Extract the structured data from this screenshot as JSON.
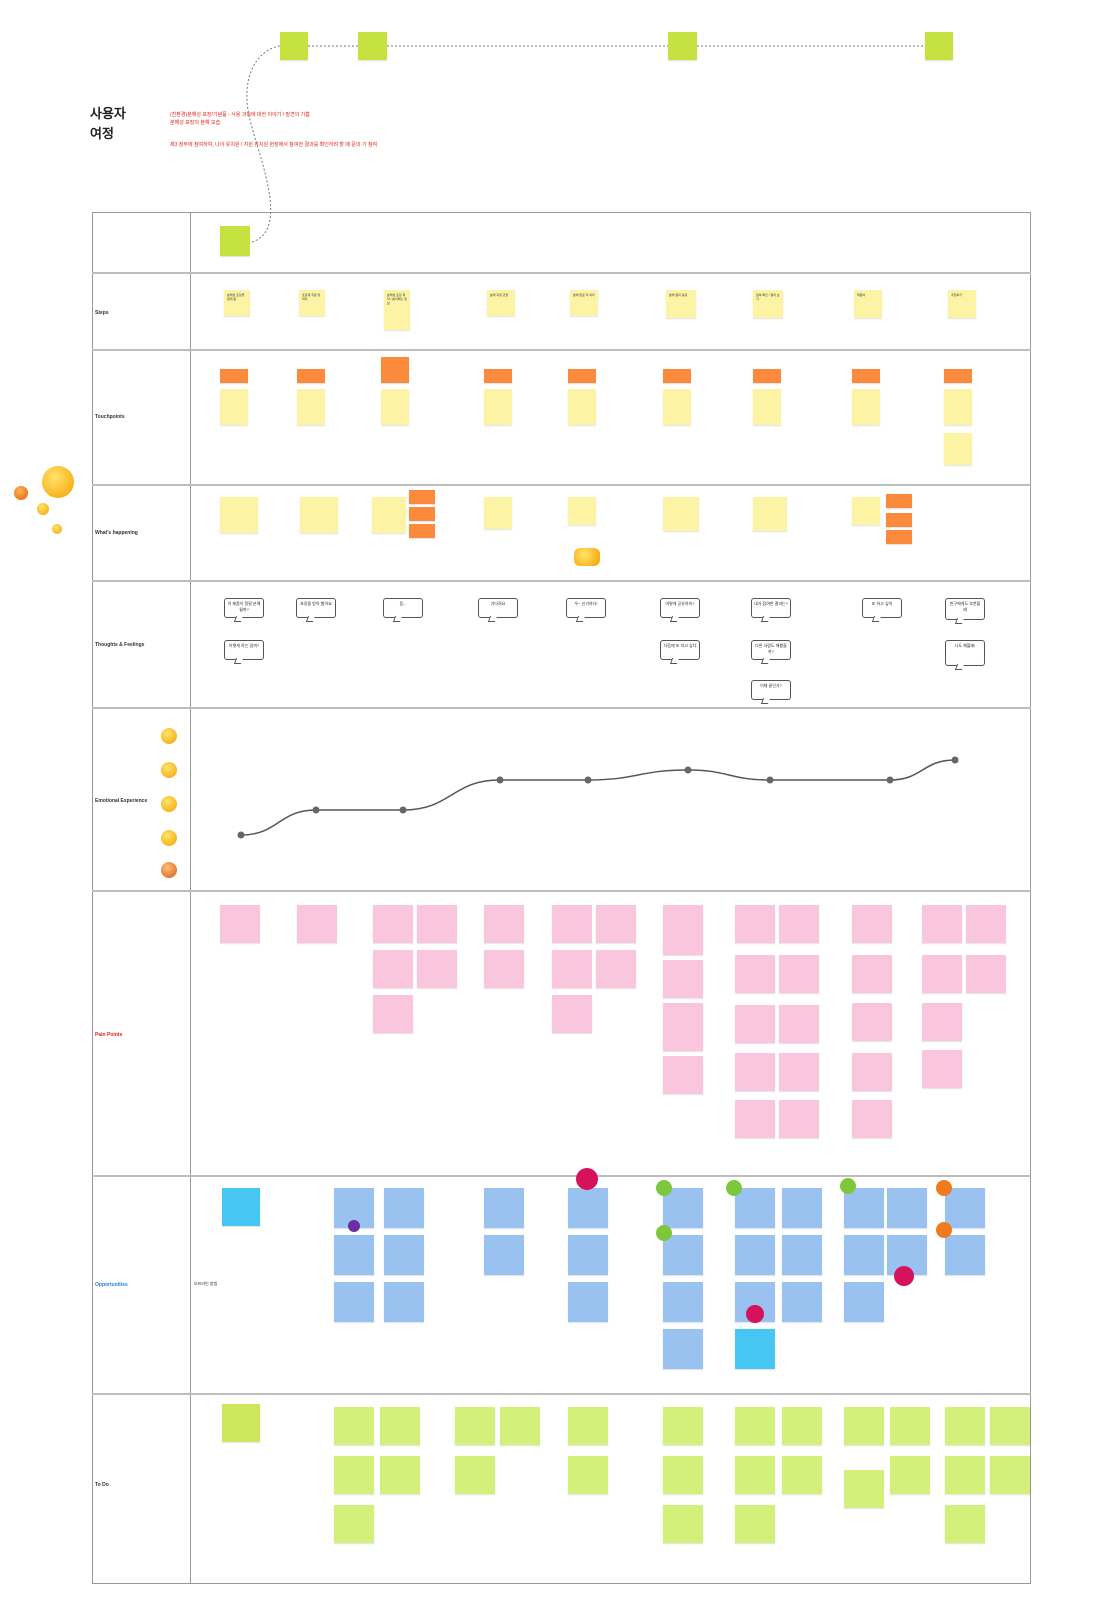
{
  "title": "사용자 여정",
  "notes": [
    "(친환경)분해성 포장/기념품 - 사용 과정에 대한 이야기 / 발견의 기쁨",
    "분해성 포장의 분해 모습",
    "제3 정부에 참여하여, 나이 유치원 / 지원 유치원 현장에서 참여한 결과를 확인하려 할 때 문의 기 참여"
  ],
  "rows": {
    "steps": "Steps",
    "touchpoints": "Touchpoints",
    "whats_happening": "What's happening",
    "thoughts": "Thoughts & Feelings",
    "emotional": "Emotional Experience",
    "pain_points": "Pain Points",
    "opportunities": "Opportunities",
    "todo": "To Do"
  },
  "opportunity_side_note": "오프라인 방법",
  "steps": [
    "분해성 포장을 알게 됨",
    "포장재 주문 및 처리",
    "분해성 포장 제작 / 분리배출 정보",
    "분해 과정 관찰",
    "분해 완료 후 처리",
    "분해 결과 공유",
    "참여 확인 / 결과 보기",
    "재참여",
    "추천하기"
  ],
  "thoughts": [
    [
      "이 제품이 정말 분해될까?",
      "어떻게 하는 걸까?"
    ],
    [
      "포장을 받아 봤어요"
    ],
    [
      "음..."
    ],
    [
      "기다려요"
    ],
    [
      "우~ 신기하다!"
    ],
    [
      "어떻게 공유하지?",
      "다음에 또 하고 싶다"
    ],
    [
      "내가 참여한 결과는?",
      "다른 사람도 해봤을까?",
      "이제 끝인가?"
    ],
    [
      "또 하고 싶어"
    ],
    [
      "친구에게도 추천할래",
      "나도 해볼래!"
    ]
  ],
  "emotion_scores": [
    1,
    2,
    2,
    3.2,
    3.2,
    3.6,
    3.2,
    3.2,
    4
  ],
  "emotion_scale": [
    "very happy",
    "happy",
    "neutral",
    "sad",
    "very sad"
  ],
  "colors": {
    "yellow": "#fcf3a5",
    "orange": "#fb8a3c",
    "pink": "#f9c6de",
    "blue": "#9ac2f0",
    "green": "#d3f07a"
  }
}
